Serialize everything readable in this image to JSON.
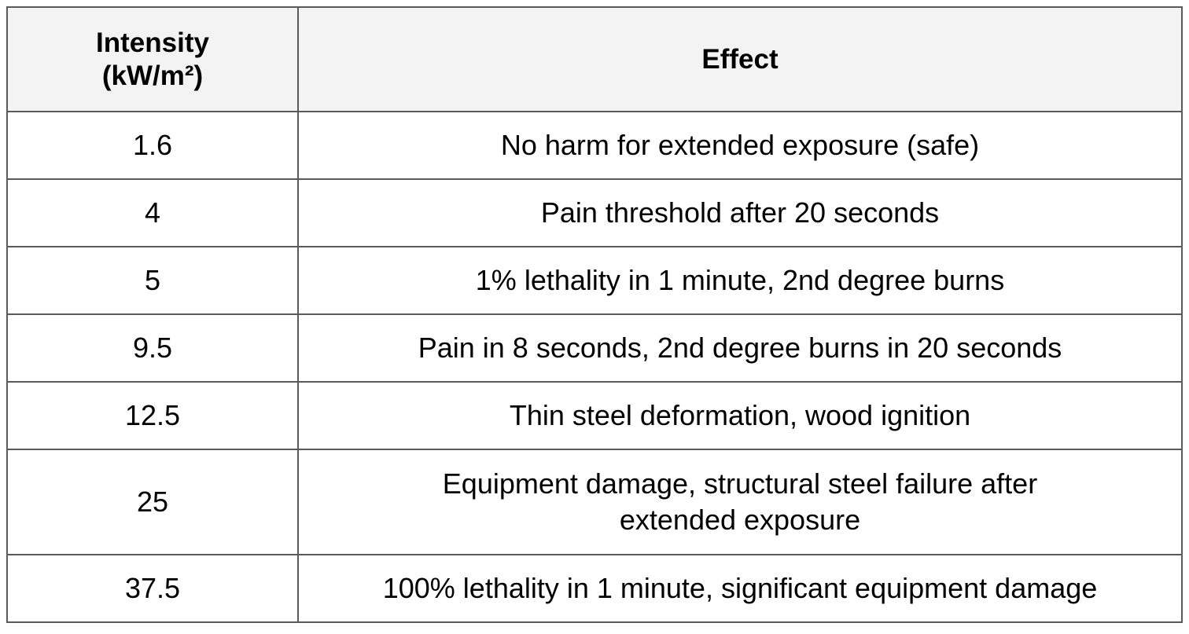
{
  "table": {
    "header": [
      "Intensity (kW/m²)",
      "Effect"
    ],
    "rows": [
      [
        1.6,
        "No harm for extended exposure (safe)"
      ],
      [
        4,
        "Pain threshold after 20 seconds"
      ],
      [
        5,
        "1% lethality in 1 minute, 2nd degree burns"
      ],
      [
        9.5,
        "Pain in 8 seconds, 2nd degree burns in 20 seconds"
      ],
      [
        12.5,
        "Thin steel deformation, wood ignition"
      ],
      [
        25,
        "Equipment damage, structural steel failure after extended exposure"
      ],
      [
        37.5,
        "100% lethality in 1 minute, significant equipment damage"
      ]
    ]
  }
}
